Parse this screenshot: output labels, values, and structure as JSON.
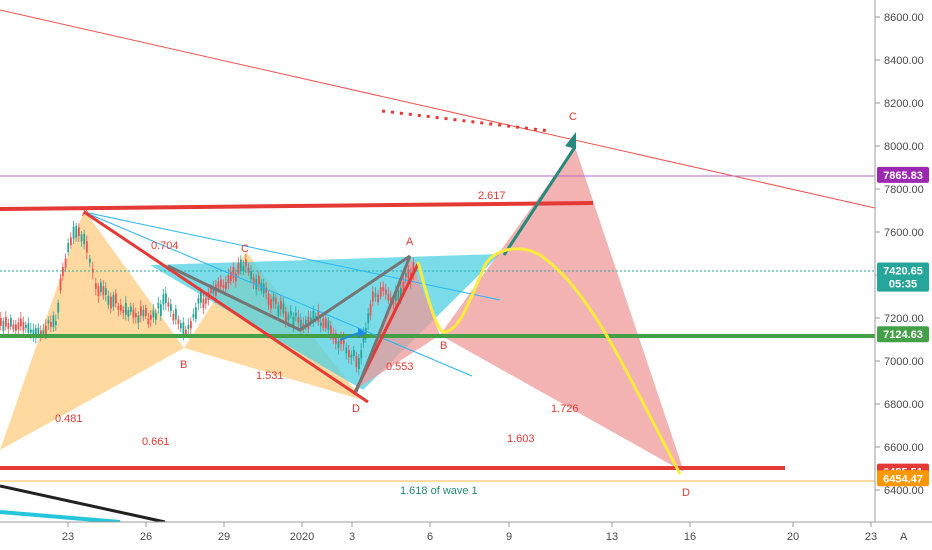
{
  "chart_data": {
    "type": "candlestick-with-drawings",
    "y_ticks": [
      "8600.00",
      "8400.00",
      "8200.00",
      "8000.00",
      "7800.00",
      "7600.00",
      "7400.00",
      "7200.00",
      "7000.00",
      "6800.00",
      "6600.00",
      "6400.00"
    ],
    "x_ticks": [
      "23",
      "26",
      "29",
      "2020",
      "3",
      "6",
      "9",
      "13",
      "16",
      "20",
      "23"
    ],
    "price_tags": [
      {
        "label": "7865.83",
        "value": 7865.83,
        "color": "#9c27b0"
      },
      {
        "label": "7420.65",
        "value": 7420.65,
        "color": "#26a69a"
      },
      {
        "label": "05:35",
        "value": 7360,
        "color": "#26a69a"
      },
      {
        "label": "7124.63",
        "value": 7124.63,
        "color": "#43a047"
      },
      {
        "label": "6485.51",
        "value": 6485.51,
        "color": "#e53935"
      },
      {
        "label": "6454.47",
        "value": 6454.47,
        "color": "#ff9800"
      }
    ],
    "annotations": {
      "A1": "A",
      "B1": "B",
      "C1": "C",
      "D1": "D",
      "A2": "A",
      "B2": "B",
      "C2": "C",
      "D2": "D",
      "r0704": "0.704",
      "r1531": "1.531",
      "r0481": "0.481",
      "r0661": "0.661",
      "r0553": "0.553",
      "r2617": "2.617",
      "r1726": "1.726",
      "r1603": "1.603",
      "wave": "1.618 of wave 1"
    },
    "corner_label": "A",
    "colors": {
      "up": "#26a69a",
      "down": "#ef5350",
      "orange_fill": "#ffcc80",
      "cyan_fill": "#4dd0e1",
      "red_fill": "#ef9a9a"
    }
  }
}
